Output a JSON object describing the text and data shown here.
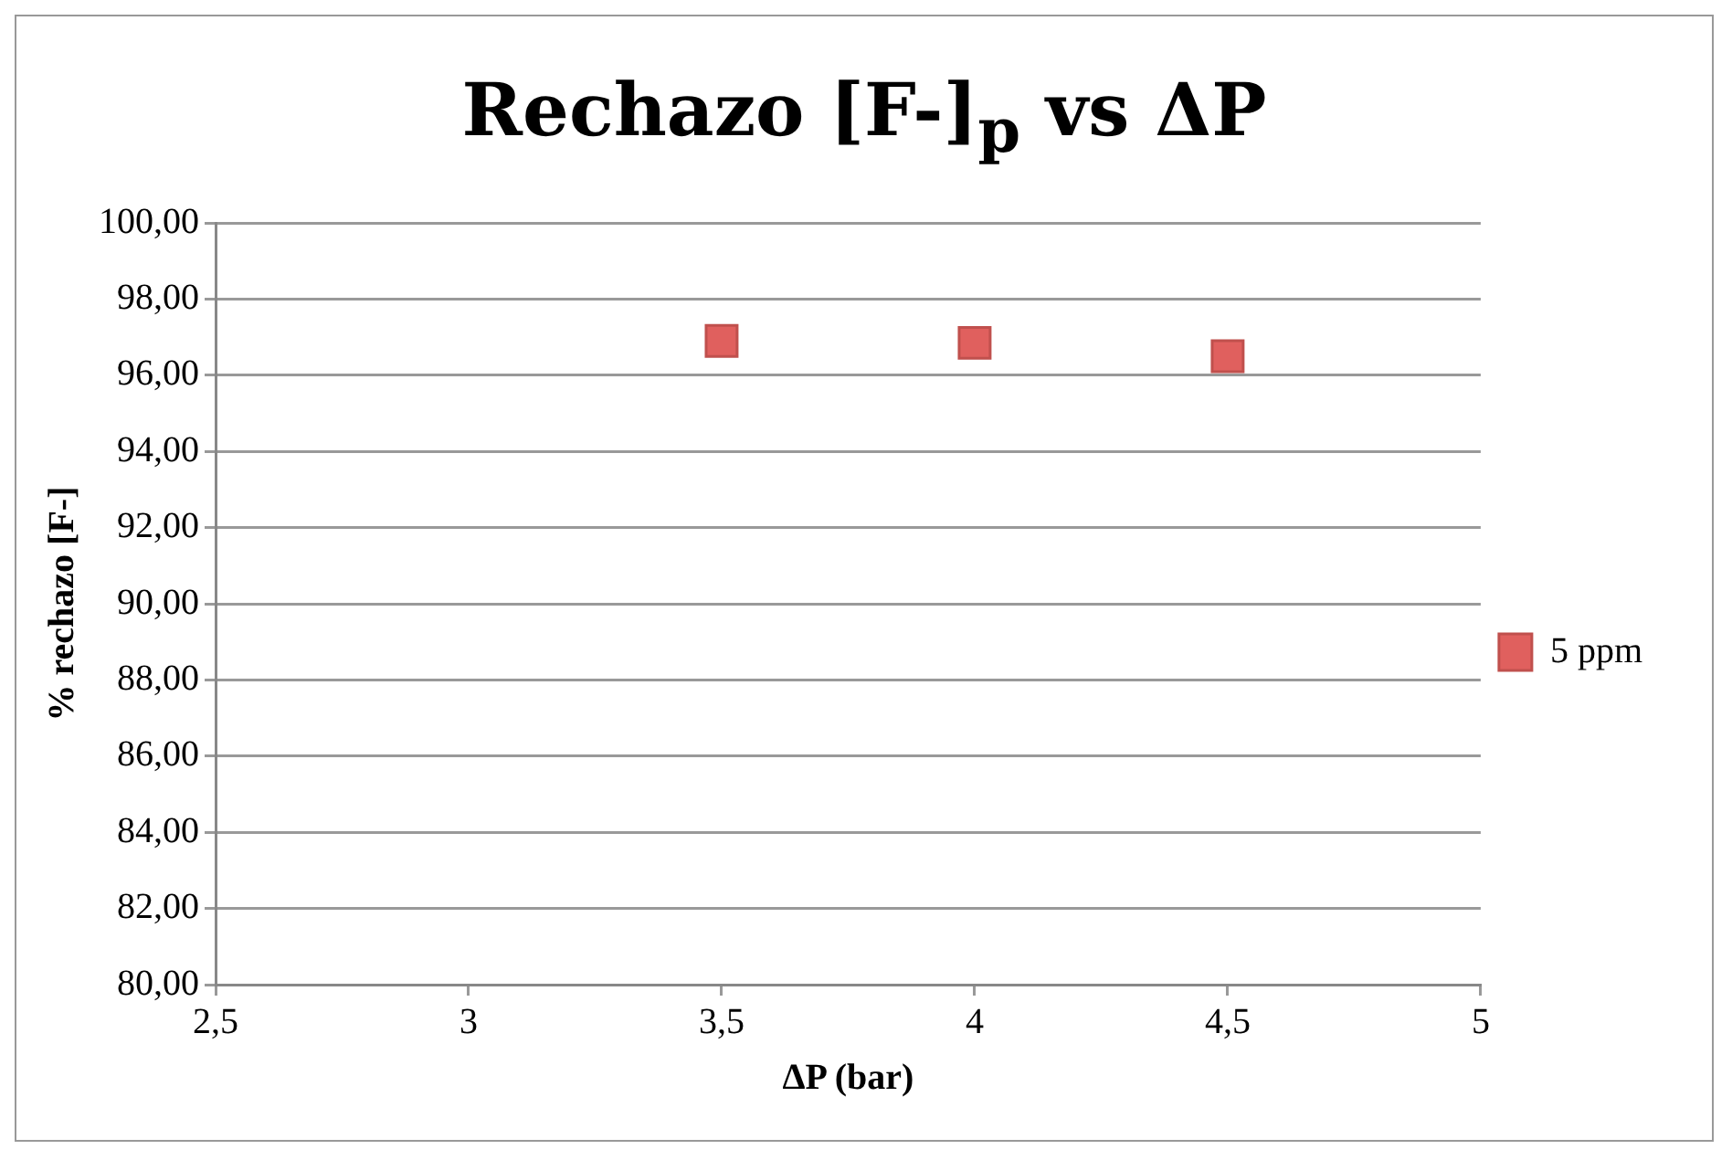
{
  "chart_data": {
    "type": "scatter",
    "title": "Rechazo [F-]$_{p}$ vs ΔP",
    "xlabel": "ΔP (bar)",
    "ylabel": "% rechazo [F-]",
    "x": [
      3.5,
      4,
      4.5
    ],
    "series": [
      {
        "name": "5 ppm",
        "color": "#e0605e",
        "values": [
          96.9,
          96.85,
          96.5
        ]
      }
    ],
    "xlim": [
      2.5,
      5
    ],
    "xticks": [
      {
        "value": 2.5,
        "label": "2,5"
      },
      3,
      {
        "value": 3.5,
        "label": "3,5"
      },
      4,
      {
        "value": 4.5,
        "label": "4,5"
      },
      5
    ],
    "ylim": [
      80,
      100
    ],
    "yticks": [
      {
        "value": 80,
        "label": "80,00"
      },
      {
        "value": 82,
        "label": "82,00"
      },
      {
        "value": 84,
        "label": "84,00"
      },
      {
        "value": 86,
        "label": "86,00"
      },
      {
        "value": 88,
        "label": "88,00"
      },
      {
        "value": 90,
        "label": "90,00"
      },
      {
        "value": 92,
        "label": "92,00"
      },
      {
        "value": 94,
        "label": "94,00"
      },
      {
        "value": 96,
        "label": "96,00"
      },
      {
        "value": 98,
        "label": "98,00"
      },
      {
        "value": 100,
        "label": "100,00"
      }
    ],
    "grid": "y",
    "legend": "right",
    "marker": "square"
  }
}
